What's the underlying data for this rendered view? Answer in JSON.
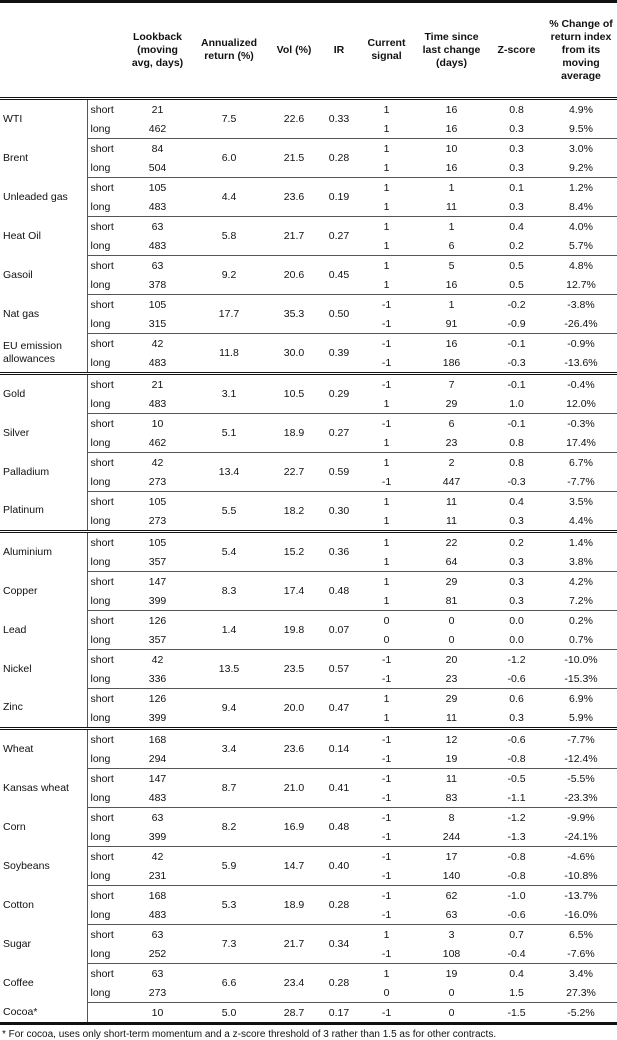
{
  "headers": [
    "",
    "",
    "Lookback (moving avg, days)",
    "Annualized return (%)",
    "Vol (%)",
    "IR",
    "Current signal",
    "Time since last change (days)",
    "Z-score",
    "% Change of return index from its moving average"
  ],
  "groups": [
    [
      {
        "name": "WTI",
        "ann": "7.5",
        "vol": "22.6",
        "ir": "0.33",
        "rows": [
          [
            "short",
            "21",
            "1",
            "16",
            "0.8",
            "4.9%"
          ],
          [
            "long",
            "462",
            "1",
            "16",
            "0.3",
            "9.5%"
          ]
        ]
      },
      {
        "name": "Brent",
        "ann": "6.0",
        "vol": "21.5",
        "ir": "0.28",
        "rows": [
          [
            "short",
            "84",
            "1",
            "10",
            "0.3",
            "3.0%"
          ],
          [
            "long",
            "504",
            "1",
            "16",
            "0.3",
            "9.2%"
          ]
        ]
      },
      {
        "name": "Unleaded gas",
        "ann": "4.4",
        "vol": "23.6",
        "ir": "0.19",
        "rows": [
          [
            "short",
            "105",
            "1",
            "1",
            "0.1",
            "1.2%"
          ],
          [
            "long",
            "483",
            "1",
            "11",
            "0.3",
            "8.4%"
          ]
        ]
      },
      {
        "name": "Heat Oil",
        "ann": "5.8",
        "vol": "21.7",
        "ir": "0.27",
        "rows": [
          [
            "short",
            "63",
            "1",
            "1",
            "0.4",
            "4.0%"
          ],
          [
            "long",
            "483",
            "1",
            "6",
            "0.2",
            "5.7%"
          ]
        ]
      },
      {
        "name": "Gasoil",
        "ann": "9.2",
        "vol": "20.6",
        "ir": "0.45",
        "rows": [
          [
            "short",
            "63",
            "1",
            "5",
            "0.5",
            "4.8%"
          ],
          [
            "long",
            "378",
            "1",
            "16",
            "0.5",
            "12.7%"
          ]
        ]
      },
      {
        "name": "Nat gas",
        "ann": "17.7",
        "vol": "35.3",
        "ir": "0.50",
        "rows": [
          [
            "short",
            "105",
            "-1",
            "1",
            "-0.2",
            "-3.8%"
          ],
          [
            "long",
            "315",
            "-1",
            "91",
            "-0.9",
            "-26.4%"
          ]
        ]
      },
      {
        "name": "EU emission allowances",
        "ann": "11.8",
        "vol": "30.0",
        "ir": "0.39",
        "rows": [
          [
            "short",
            "42",
            "-1",
            "16",
            "-0.1",
            "-0.9%"
          ],
          [
            "long",
            "483",
            "-1",
            "186",
            "-0.3",
            "-13.6%"
          ]
        ]
      }
    ],
    [
      {
        "name": "Gold",
        "ann": "3.1",
        "vol": "10.5",
        "ir": "0.29",
        "rows": [
          [
            "short",
            "21",
            "-1",
            "7",
            "-0.1",
            "-0.4%"
          ],
          [
            "long",
            "483",
            "1",
            "29",
            "1.0",
            "12.0%"
          ]
        ]
      },
      {
        "name": "Silver",
        "ann": "5.1",
        "vol": "18.9",
        "ir": "0.27",
        "rows": [
          [
            "short",
            "10",
            "-1",
            "6",
            "-0.1",
            "-0.3%"
          ],
          [
            "long",
            "462",
            "1",
            "23",
            "0.8",
            "17.4%"
          ]
        ]
      },
      {
        "name": "Palladium",
        "ann": "13.4",
        "vol": "22.7",
        "ir": "0.59",
        "rows": [
          [
            "short",
            "42",
            "1",
            "2",
            "0.8",
            "6.7%"
          ],
          [
            "long",
            "273",
            "-1",
            "447",
            "-0.3",
            "-7.7%"
          ]
        ]
      },
      {
        "name": "Platinum",
        "ann": "5.5",
        "vol": "18.2",
        "ir": "0.30",
        "rows": [
          [
            "short",
            "105",
            "1",
            "11",
            "0.4",
            "3.5%"
          ],
          [
            "long",
            "273",
            "1",
            "11",
            "0.3",
            "4.4%"
          ]
        ]
      }
    ],
    [
      {
        "name": "Aluminium",
        "ann": "5.4",
        "vol": "15.2",
        "ir": "0.36",
        "rows": [
          [
            "short",
            "105",
            "1",
            "22",
            "0.2",
            "1.4%"
          ],
          [
            "long",
            "357",
            "1",
            "64",
            "0.3",
            "3.8%"
          ]
        ]
      },
      {
        "name": "Copper",
        "ann": "8.3",
        "vol": "17.4",
        "ir": "0.48",
        "rows": [
          [
            "short",
            "147",
            "1",
            "29",
            "0.3",
            "4.2%"
          ],
          [
            "long",
            "399",
            "1",
            "81",
            "0.3",
            "7.2%"
          ]
        ]
      },
      {
        "name": "Lead",
        "ann": "1.4",
        "vol": "19.8",
        "ir": "0.07",
        "rows": [
          [
            "short",
            "126",
            "0",
            "0",
            "0.0",
            "0.2%"
          ],
          [
            "long",
            "357",
            "0",
            "0",
            "0.0",
            "0.7%"
          ]
        ]
      },
      {
        "name": "Nickel",
        "ann": "13.5",
        "vol": "23.5",
        "ir": "0.57",
        "rows": [
          [
            "short",
            "42",
            "-1",
            "20",
            "-1.2",
            "-10.0%"
          ],
          [
            "long",
            "336",
            "-1",
            "23",
            "-0.6",
            "-15.3%"
          ]
        ]
      },
      {
        "name": "Zinc",
        "ann": "9.4",
        "vol": "20.0",
        "ir": "0.47",
        "rows": [
          [
            "short",
            "126",
            "1",
            "29",
            "0.6",
            "6.9%"
          ],
          [
            "long",
            "399",
            "1",
            "11",
            "0.3",
            "5.9%"
          ]
        ]
      }
    ],
    [
      {
        "name": "Wheat",
        "ann": "3.4",
        "vol": "23.6",
        "ir": "0.14",
        "rows": [
          [
            "short",
            "168",
            "-1",
            "12",
            "-0.6",
            "-7.7%"
          ],
          [
            "long",
            "294",
            "-1",
            "19",
            "-0.8",
            "-12.4%"
          ]
        ]
      },
      {
        "name": "Kansas wheat",
        "ann": "8.7",
        "vol": "21.0",
        "ir": "0.41",
        "rows": [
          [
            "short",
            "147",
            "-1",
            "11",
            "-0.5",
            "-5.5%"
          ],
          [
            "long",
            "483",
            "-1",
            "83",
            "-1.1",
            "-23.3%"
          ]
        ]
      },
      {
        "name": "Corn",
        "ann": "8.2",
        "vol": "16.9",
        "ir": "0.48",
        "rows": [
          [
            "short",
            "63",
            "-1",
            "8",
            "-1.2",
            "-9.9%"
          ],
          [
            "long",
            "399",
            "-1",
            "244",
            "-1.3",
            "-24.1%"
          ]
        ]
      },
      {
        "name": "Soybeans",
        "ann": "5.9",
        "vol": "14.7",
        "ir": "0.40",
        "rows": [
          [
            "short",
            "42",
            "-1",
            "17",
            "-0.8",
            "-4.6%"
          ],
          [
            "long",
            "231",
            "-1",
            "140",
            "-0.8",
            "-10.8%"
          ]
        ]
      },
      {
        "name": "Cotton",
        "ann": "5.3",
        "vol": "18.9",
        "ir": "0.28",
        "rows": [
          [
            "short",
            "168",
            "-1",
            "62",
            "-1.0",
            "-13.7%"
          ],
          [
            "long",
            "483",
            "-1",
            "63",
            "-0.6",
            "-16.0%"
          ]
        ]
      },
      {
        "name": "Sugar",
        "ann": "7.3",
        "vol": "21.7",
        "ir": "0.34",
        "rows": [
          [
            "short",
            "63",
            "1",
            "3",
            "0.7",
            "6.5%"
          ],
          [
            "long",
            "252",
            "-1",
            "108",
            "-0.4",
            "-7.6%"
          ]
        ]
      },
      {
        "name": "Coffee",
        "ann": "6.6",
        "vol": "23.4",
        "ir": "0.28",
        "rows": [
          [
            "short",
            "63",
            "1",
            "19",
            "0.4",
            "3.4%"
          ],
          [
            "long",
            "273",
            "0",
            "0",
            "1.5",
            "27.3%"
          ]
        ]
      },
      {
        "name": "Cocoa*",
        "ann": "5.0",
        "vol": "28.7",
        "ir": "0.17",
        "rows": [
          [
            "",
            "10",
            "-1",
            "0",
            "-1.5",
            "-5.2%"
          ]
        ]
      }
    ]
  ],
  "footnote": "* For cocoa, uses only short-term momentum and a z-score threshold of 3 rather than 1.5 as for other contracts."
}
